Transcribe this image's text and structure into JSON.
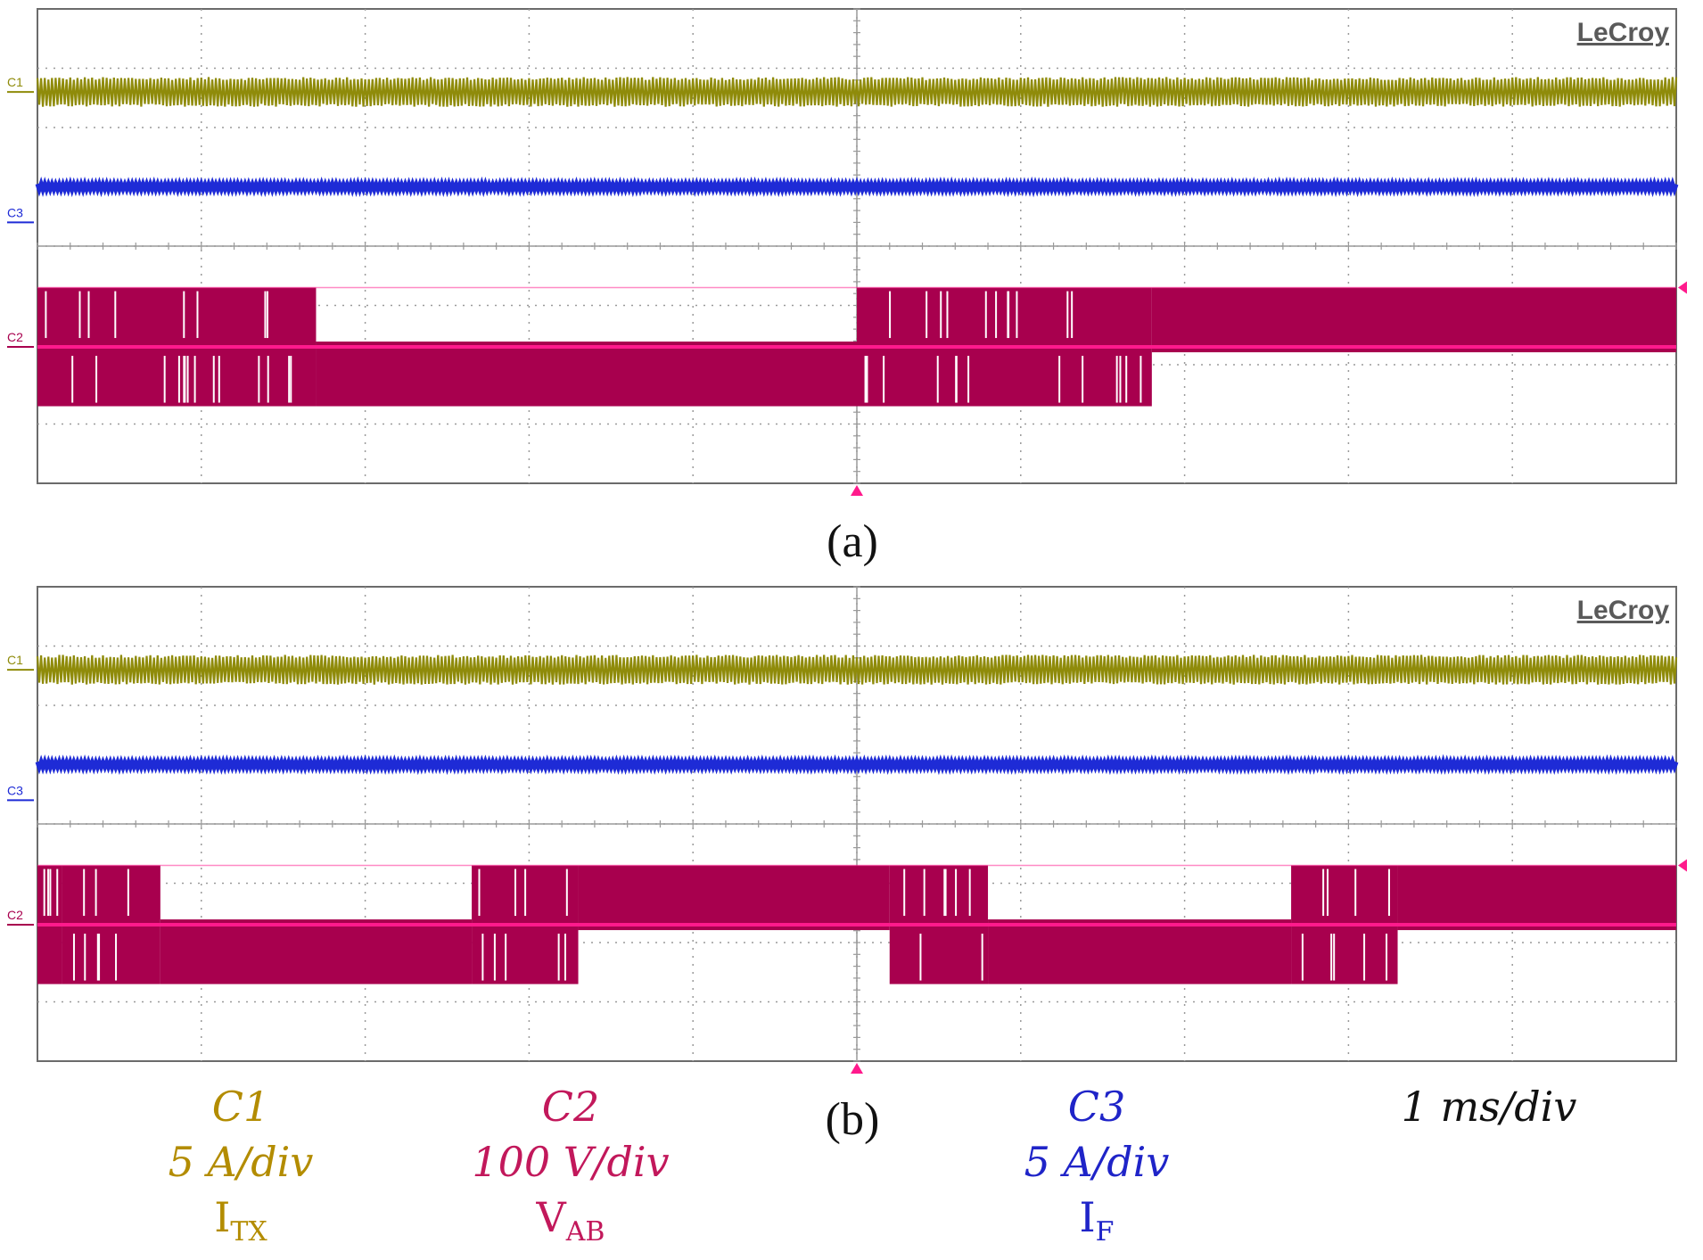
{
  "chart_data": [
    {
      "type": "line",
      "panel": "a",
      "brand": "LeCroy",
      "caption": "(a)",
      "x_divisions": 10,
      "y_divisions": 8,
      "channel_markers": [
        "C1",
        "C3",
        "C2"
      ],
      "series": [
        {
          "channel": "C1",
          "color": "#8f8b0a",
          "center_div": 6.6,
          "amplitude_div": 0.25,
          "kind": "steady"
        },
        {
          "channel": "C3",
          "color": "#1e2bd6",
          "center_div": 5.0,
          "amplitude_div": 0.05,
          "kind": "steady"
        },
        {
          "channel": "C2",
          "color": "#a8004e",
          "kind": "switching",
          "ref_div": 2.3,
          "level_div": 1.0,
          "segments": [
            {
              "t_start": 0.0,
              "t_end": 1.7,
              "state": "both"
            },
            {
              "t_start": 1.7,
              "t_end": 5.0,
              "state": "low"
            },
            {
              "t_start": 5.0,
              "t_end": 6.8,
              "state": "both"
            },
            {
              "t_start": 6.8,
              "t_end": 10.0,
              "state": "high"
            }
          ]
        }
      ],
      "trigger_time_div": 5.0
    },
    {
      "type": "line",
      "panel": "b",
      "brand": "LeCroy",
      "caption": "(b)",
      "x_divisions": 10,
      "y_divisions": 8,
      "channel_markers": [
        "C1",
        "C3",
        "C2"
      ],
      "series": [
        {
          "channel": "C1",
          "color": "#8f8b0a",
          "center_div": 6.6,
          "amplitude_div": 0.25,
          "kind": "steady"
        },
        {
          "channel": "C3",
          "color": "#1e2bd6",
          "center_div": 5.0,
          "amplitude_div": 0.05,
          "kind": "steady"
        },
        {
          "channel": "C2",
          "color": "#a8004e",
          "kind": "switching",
          "ref_div": 2.3,
          "level_div": 1.0,
          "segments": [
            {
              "t_start": 0.0,
              "t_end": 0.15,
              "state": "both"
            },
            {
              "t_start": 0.15,
              "t_end": 0.75,
              "state": "both"
            },
            {
              "t_start": 0.75,
              "t_end": 2.65,
              "state": "low"
            },
            {
              "t_start": 2.65,
              "t_end": 3.3,
              "state": "both"
            },
            {
              "t_start": 3.3,
              "t_end": 5.2,
              "state": "high"
            },
            {
              "t_start": 5.2,
              "t_end": 5.8,
              "state": "both"
            },
            {
              "t_start": 5.8,
              "t_end": 7.65,
              "state": "low"
            },
            {
              "t_start": 7.65,
              "t_end": 8.3,
              "state": "both"
            },
            {
              "t_start": 8.3,
              "t_end": 10.0,
              "state": "high"
            }
          ]
        }
      ],
      "trigger_time_div": 5.0
    }
  ],
  "legend": {
    "c1": {
      "name": "C1",
      "scale": "5 A/div",
      "sym": "I",
      "sub": "TX"
    },
    "c2": {
      "name": "C2",
      "scale": "100 V/div",
      "sym": "V",
      "sub": "AB"
    },
    "c3": {
      "name": "C3",
      "scale": "5 A/div",
      "sym": "I",
      "sub": "F"
    },
    "timebase": "1 ms/div"
  },
  "colors": {
    "c1": "#8f8b0a",
    "c2": "#a8004e",
    "c2_ref": "#ff1a8c",
    "c3": "#1e2bd6",
    "grid": "#9a9a9a",
    "frame": "#6b6b6b"
  }
}
